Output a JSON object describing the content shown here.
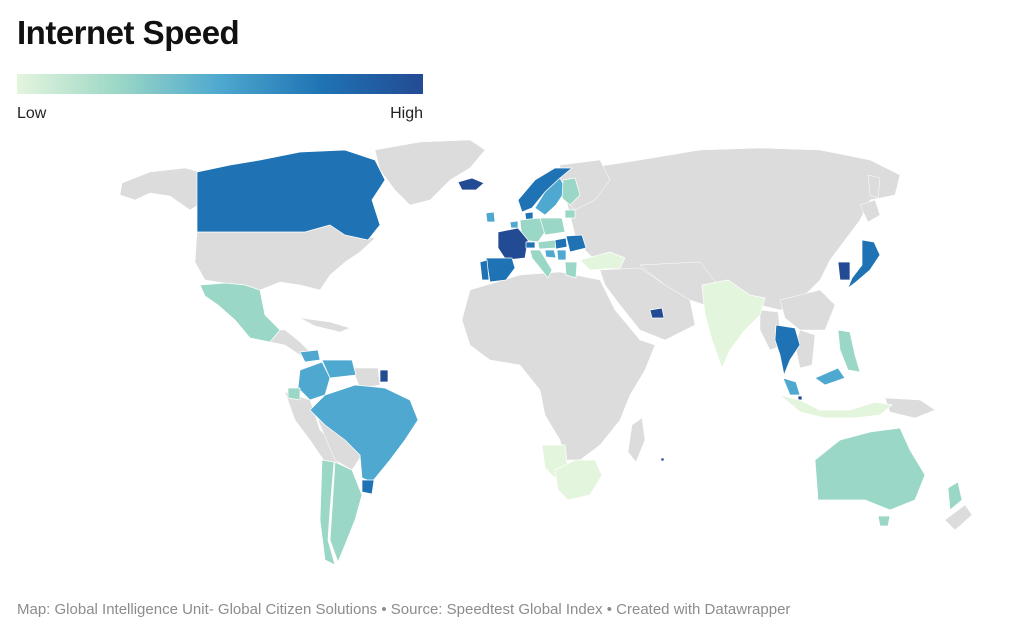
{
  "title": "Internet Speed",
  "legend": {
    "low_label": "Low",
    "high_label": "High",
    "colors": [
      "#e4f5dd",
      "#9bd7c6",
      "#4ea8cf",
      "#1f73b4",
      "#234b93"
    ]
  },
  "footer": {
    "map_credit": "Map: Global Intelligence Unit- Global Citizen Solutions",
    "source": " • Source: Speedtest Global Index",
    "created_with": " • Created with Datawrapper"
  },
  "map_data": {
    "no_data_color": "#dcdcdc",
    "countries": [
      {
        "name": "Canada",
        "level": 4
      },
      {
        "name": "Mexico",
        "level": 2
      },
      {
        "name": "Costa Rica",
        "level": 3
      },
      {
        "name": "Panama",
        "level": 3
      },
      {
        "name": "Colombia",
        "level": 3
      },
      {
        "name": "Venezuela",
        "level": 3
      },
      {
        "name": "French Guiana",
        "level": 5
      },
      {
        "name": "Ecuador",
        "level": 2
      },
      {
        "name": "Brazil",
        "level": 3
      },
      {
        "name": "Uruguay",
        "level": 4
      },
      {
        "name": "Argentina",
        "level": 2
      },
      {
        "name": "Chile",
        "level": 2
      },
      {
        "name": "Iceland",
        "level": 5
      },
      {
        "name": "Ireland",
        "level": 3
      },
      {
        "name": "Norway",
        "level": 4
      },
      {
        "name": "Sweden",
        "level": 3
      },
      {
        "name": "Finland",
        "level": 2
      },
      {
        "name": "Denmark",
        "level": 4
      },
      {
        "name": "Lithuania",
        "level": 2
      },
      {
        "name": "Netherlands",
        "level": 3
      },
      {
        "name": "France",
        "level": 5
      },
      {
        "name": "Spain",
        "level": 4
      },
      {
        "name": "Portugal",
        "level": 4
      },
      {
        "name": "Germany",
        "level": 2
      },
      {
        "name": "Switzerland",
        "level": 4
      },
      {
        "name": "Austria",
        "level": 2
      },
      {
        "name": "Poland",
        "level": 2
      },
      {
        "name": "Hungary",
        "level": 4
      },
      {
        "name": "Romania",
        "level": 4
      },
      {
        "name": "Italy",
        "level": 2
      },
      {
        "name": "Croatia",
        "level": 3
      },
      {
        "name": "Serbia",
        "level": 3
      },
      {
        "name": "Greece",
        "level": 2
      },
      {
        "name": "Turkey",
        "level": 1
      },
      {
        "name": "United Arab Emirates",
        "level": 5
      },
      {
        "name": "India",
        "level": 1
      },
      {
        "name": "Thailand",
        "level": 4
      },
      {
        "name": "Malaysia",
        "level": 3
      },
      {
        "name": "Singapore",
        "level": 5
      },
      {
        "name": "Indonesia",
        "level": 1
      },
      {
        "name": "Philippines",
        "level": 2
      },
      {
        "name": "South Korea",
        "level": 5
      },
      {
        "name": "Japan",
        "level": 4
      },
      {
        "name": "Namibia",
        "level": 1
      },
      {
        "name": "South Africa",
        "level": 1
      },
      {
        "name": "Mauritius",
        "level": 5
      },
      {
        "name": "Australia",
        "level": 2
      },
      {
        "name": "New Zealand",
        "level": 2
      }
    ]
  }
}
